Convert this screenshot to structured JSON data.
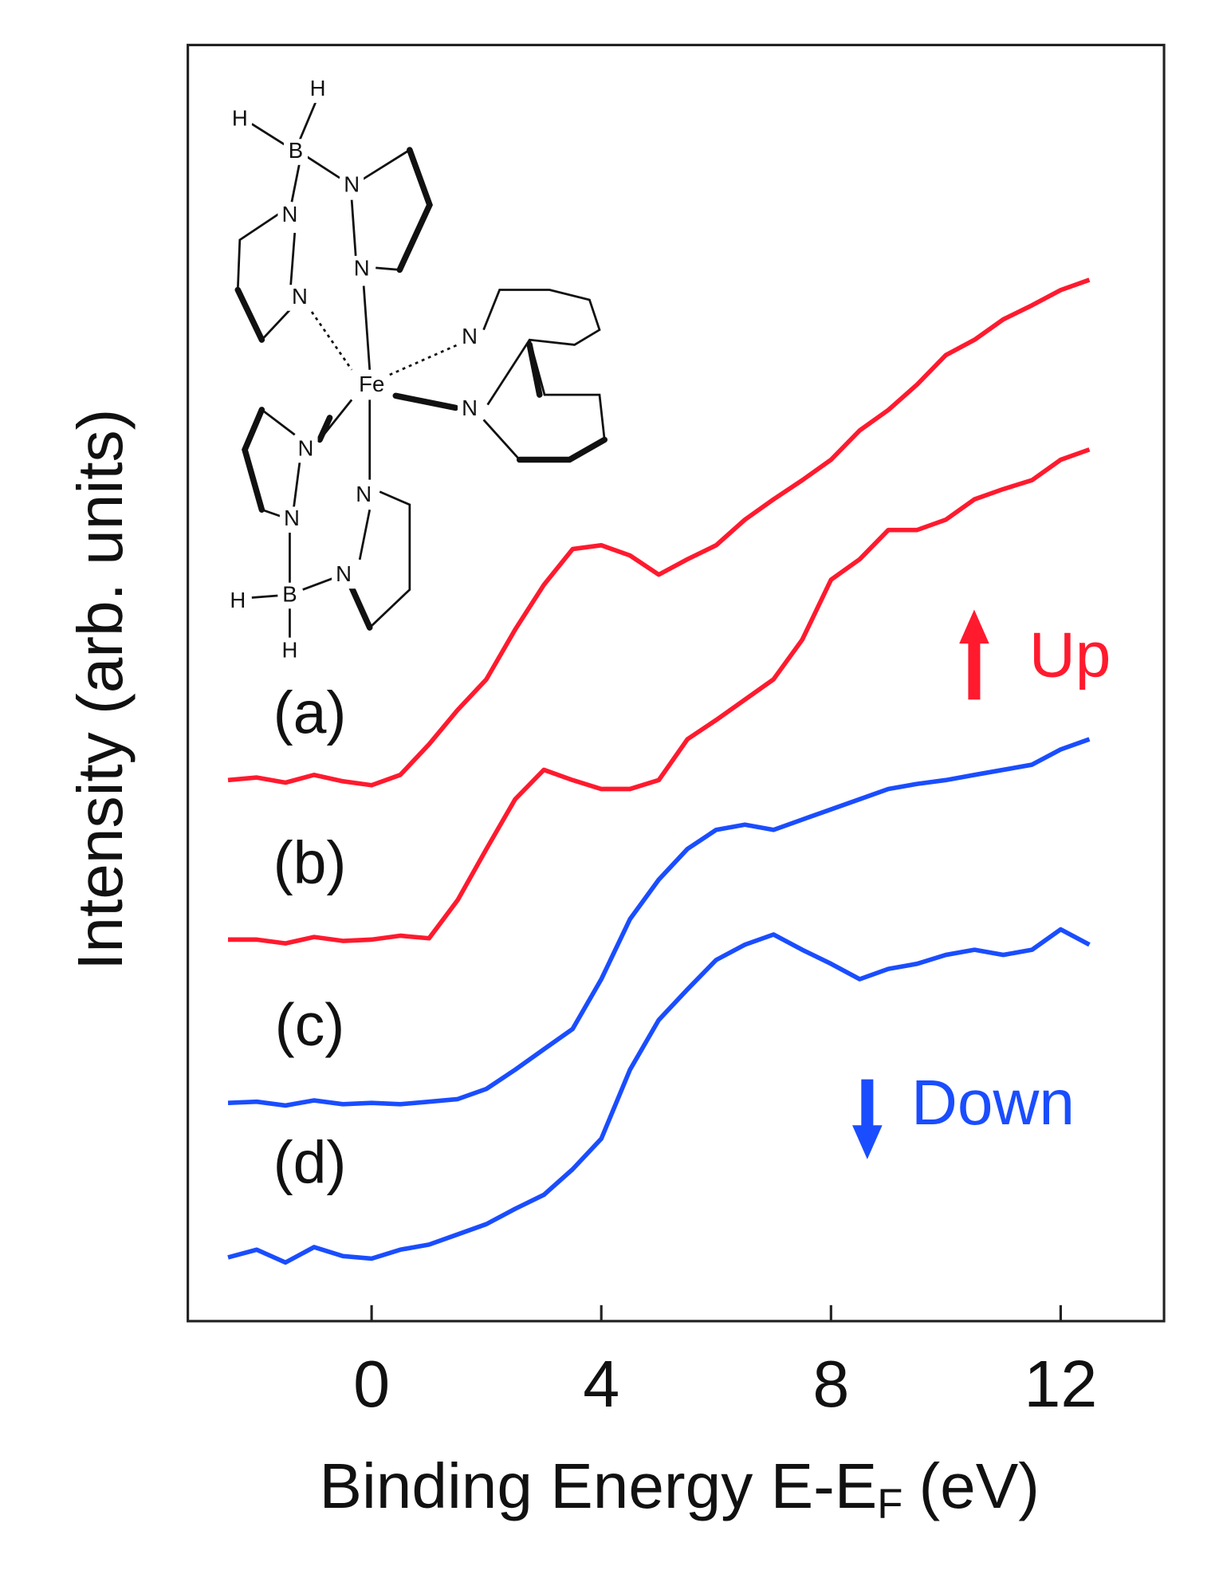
{
  "chart_data": {
    "type": "line",
    "x_label": "Binding Energy E-E",
    "x_label_subscript": "F",
    "x_label_suffix": "(eV)",
    "y_label": "Intensity (arb. units)",
    "xlim": [
      -3.2,
      13.8
    ],
    "xticks": [
      0,
      4,
      8,
      12
    ],
    "ylim": [
      0,
      100
    ],
    "x": [
      -2.5,
      -2,
      -1.5,
      -1,
      -0.5,
      0,
      0.5,
      1,
      1.5,
      2,
      2.5,
      3,
      3.5,
      4,
      4.5,
      5,
      5.5,
      6,
      6.5,
      7,
      7.5,
      8,
      8.5,
      9,
      9.5,
      10,
      10.5,
      11,
      11.5,
      12,
      12.5
    ],
    "series": [
      {
        "name": "(a)",
        "color": "#ff1a2e",
        "values": [
          42.4,
          42.6,
          42.2,
          42.8,
          42.3,
          42.0,
          42.8,
          45.2,
          47.9,
          50.3,
          54.2,
          57.7,
          60.5,
          60.8,
          60.0,
          58.5,
          59.7,
          60.8,
          62.8,
          64.4,
          65.9,
          67.5,
          69.8,
          71.4,
          73.4,
          75.7,
          76.9,
          78.5,
          79.6,
          80.8,
          81.6
        ]
      },
      {
        "name": "(b)",
        "color": "#ff1a2e",
        "values": [
          29.9,
          29.9,
          29.6,
          30.1,
          29.8,
          29.9,
          30.2,
          30.0,
          33.0,
          37.0,
          40.9,
          43.2,
          42.4,
          41.7,
          41.7,
          42.4,
          45.6,
          47.1,
          48.7,
          50.3,
          53.4,
          58.1,
          59.7,
          62.0,
          62.0,
          62.8,
          64.4,
          65.2,
          65.9,
          67.5,
          68.3
        ]
      },
      {
        "name": "(c)",
        "color": "#1a4dff",
        "values": [
          17.1,
          17.2,
          16.9,
          17.3,
          17.0,
          17.1,
          17.0,
          17.2,
          17.4,
          18.2,
          19.7,
          21.3,
          22.9,
          26.8,
          31.5,
          34.6,
          37.0,
          38.5,
          38.9,
          38.5,
          39.3,
          40.1,
          40.9,
          41.7,
          42.1,
          42.4,
          42.8,
          43.2,
          43.6,
          44.8,
          45.6
        ]
      },
      {
        "name": "(d)",
        "color": "#1a4dff",
        "values": [
          5.0,
          5.6,
          4.6,
          5.8,
          5.1,
          4.9,
          5.6,
          6.0,
          6.8,
          7.6,
          8.8,
          9.9,
          11.9,
          14.3,
          19.7,
          23.6,
          26.0,
          28.3,
          29.5,
          30.3,
          29.1,
          28.0,
          26.8,
          27.6,
          28.0,
          28.7,
          29.1,
          28.7,
          29.1,
          30.7,
          29.5
        ]
      }
    ],
    "annotations": [
      {
        "text": "Up",
        "color": "#ff1a2e"
      },
      {
        "text": "Down",
        "color": "#1a4dff"
      }
    ]
  },
  "inset": {
    "atoms": [
      "H",
      "H",
      "B",
      "N",
      "N",
      "N",
      "N",
      "Fe",
      "N",
      "N",
      "N",
      "N",
      "N",
      "N",
      "B",
      "H",
      "H"
    ]
  }
}
